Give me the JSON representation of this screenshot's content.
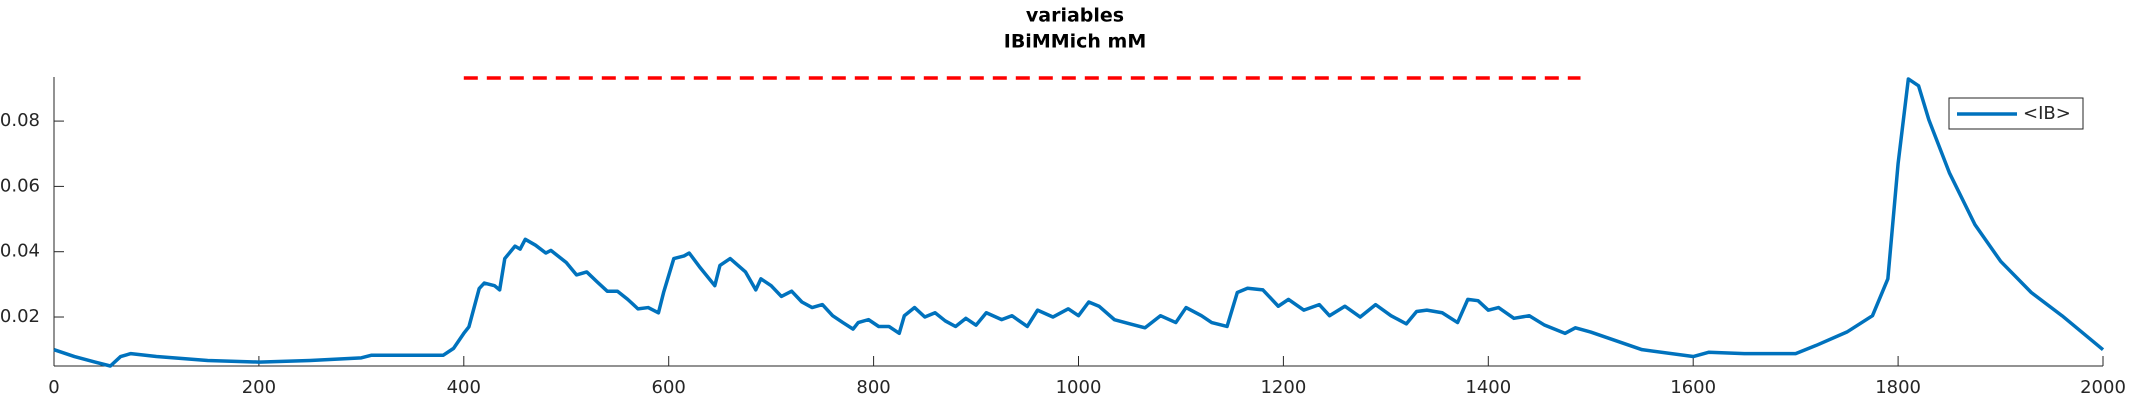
{
  "chart_data": {
    "type": "line",
    "title": "variables",
    "subtitle": "IBiMMich mM",
    "x": [
      0,
      20,
      40,
      55,
      65,
      75,
      100,
      150,
      200,
      250,
      300,
      310,
      380,
      390,
      400,
      405,
      415,
      420,
      430,
      435,
      440,
      450,
      455,
      460,
      470,
      480,
      485,
      500,
      510,
      520,
      530,
      540,
      550,
      560,
      570,
      580,
      590,
      595,
      605,
      615,
      620,
      630,
      645,
      650,
      660,
      675,
      685,
      690,
      700,
      710,
      720,
      730,
      740,
      750,
      760,
      770,
      780,
      785,
      795,
      805,
      815,
      825,
      830,
      840,
      850,
      860,
      870,
      880,
      890,
      900,
      910,
      925,
      935,
      950,
      960,
      975,
      990,
      1000,
      1010,
      1020,
      1035,
      1050,
      1065,
      1080,
      1095,
      1105,
      1120,
      1130,
      1145,
      1155,
      1165,
      1180,
      1195,
      1205,
      1220,
      1235,
      1245,
      1260,
      1275,
      1290,
      1305,
      1320,
      1330,
      1340,
      1355,
      1370,
      1380,
      1390,
      1400,
      1410,
      1425,
      1440,
      1455,
      1475,
      1485,
      1500,
      1550,
      1600,
      1615,
      1650,
      1700,
      1720,
      1750,
      1775,
      1790,
      1800,
      1810,
      1820,
      1830,
      1850,
      1875,
      1900,
      1930,
      1960,
      2000
    ],
    "series": [
      {
        "name": "<IB>",
        "color": "#0072bd",
        "values": [
          0.01,
          0.0079,
          0.0062,
          0.005,
          0.0079,
          0.0088,
          0.0079,
          0.0067,
          0.0062,
          0.0067,
          0.0075,
          0.0083,
          0.0083,
          0.0104,
          0.015,
          0.017,
          0.0287,
          0.0304,
          0.0296,
          0.0283,
          0.0379,
          0.0417,
          0.0408,
          0.0438,
          0.042,
          0.0396,
          0.0404,
          0.0367,
          0.0329,
          0.0338,
          0.0308,
          0.0279,
          0.0279,
          0.0254,
          0.0225,
          0.0229,
          0.0213,
          0.0275,
          0.0379,
          0.0387,
          0.0396,
          0.0354,
          0.0296,
          0.0358,
          0.0379,
          0.0338,
          0.0283,
          0.0317,
          0.0296,
          0.0263,
          0.0279,
          0.0246,
          0.0229,
          0.0238,
          0.0204,
          0.0183,
          0.0163,
          0.0183,
          0.0192,
          0.0171,
          0.0171,
          0.015,
          0.0204,
          0.0229,
          0.02,
          0.0213,
          0.0188,
          0.0171,
          0.0196,
          0.0175,
          0.0213,
          0.0192,
          0.0204,
          0.0171,
          0.0221,
          0.02,
          0.0225,
          0.0204,
          0.0246,
          0.0233,
          0.0192,
          0.0179,
          0.0167,
          0.0204,
          0.0183,
          0.0229,
          0.0204,
          0.0183,
          0.0171,
          0.0275,
          0.0288,
          0.0283,
          0.0233,
          0.0254,
          0.0221,
          0.0238,
          0.0204,
          0.0233,
          0.02,
          0.0238,
          0.0204,
          0.0179,
          0.0217,
          0.0221,
          0.0213,
          0.0183,
          0.0254,
          0.025,
          0.0221,
          0.0229,
          0.0196,
          0.0204,
          0.0175,
          0.015,
          0.0167,
          0.0154,
          0.01,
          0.0079,
          0.0092,
          0.0088,
          0.0088,
          0.0113,
          0.0154,
          0.0204,
          0.0317,
          0.067,
          0.0929,
          0.0908,
          0.0804,
          0.0642,
          0.0483,
          0.0371,
          0.0275,
          0.0204,
          0.01
        ]
      }
    ],
    "reference_line": {
      "x": [
        400,
        1490
      ],
      "y": 0.0932,
      "color": "#ff0000"
    },
    "xlim": [
      0,
      2000
    ],
    "xticks": [
      0,
      200,
      400,
      600,
      800,
      1000,
      1200,
      1400,
      1600,
      1800,
      2000
    ],
    "ylim": [
      0.005,
      0.0935
    ],
    "yticks": [
      0.02,
      0.04,
      0.06,
      0.08
    ],
    "legend": "top-right"
  }
}
